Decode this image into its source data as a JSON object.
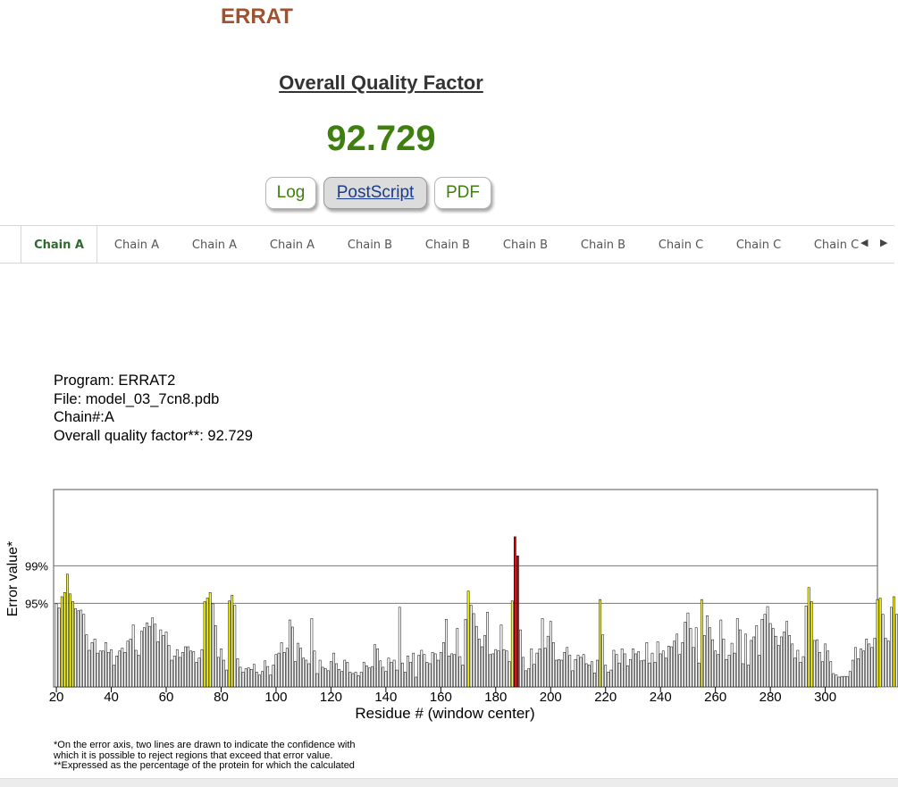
{
  "header": {
    "app_title": "ERRAT",
    "quality_heading": "Overall Quality Factor",
    "quality_value": "92.729"
  },
  "buttons": {
    "log": "Log",
    "postscript": "PostScript",
    "pdf": "PDF"
  },
  "tabs": [
    {
      "label": "Chain A",
      "active": true
    },
    {
      "label": "Chain A",
      "active": false
    },
    {
      "label": "Chain A",
      "active": false
    },
    {
      "label": "Chain A",
      "active": false
    },
    {
      "label": "Chain B",
      "active": false
    },
    {
      "label": "Chain B",
      "active": false
    },
    {
      "label": "Chain B",
      "active": false
    },
    {
      "label": "Chain B",
      "active": false
    },
    {
      "label": "Chain C",
      "active": false
    },
    {
      "label": "Chain C",
      "active": false
    },
    {
      "label": "Chain C",
      "active": false
    }
  ],
  "tab_scroll": {
    "left_icon": "◀",
    "right_icon": "▶"
  },
  "plot_info": {
    "program": "Program: ERRAT2",
    "file": "File: model_03_7cn8.pdb",
    "chain": "Chain#:A",
    "overall": "Overall quality factor**: 92.729"
  },
  "chart_data": {
    "type": "bar",
    "xlabel": "Residue # (window center)",
    "ylabel": "Error value*",
    "x_ticks": [
      20,
      40,
      60,
      80,
      100,
      120,
      140,
      160,
      180,
      200,
      220,
      240,
      260,
      280,
      300
    ],
    "thresholds": [
      {
        "label": "95%",
        "value": 11.86
      },
      {
        "label": "99%",
        "value": 17.19
      }
    ],
    "xlim": [
      19,
      319
    ],
    "ylim": [
      0,
      28
    ],
    "colors": {
      "normal": "#ffffff",
      "warn_95": "#ffff00",
      "error_99": "#cc0000",
      "outline": "#000000"
    },
    "x_start": 20,
    "values": [
      11.8,
      11.2,
      12.8,
      13.4,
      16,
      13.2,
      12.1,
      11.1,
      10.8,
      10.9,
      10.3,
      7.4,
      5.2,
      6.3,
      6.8,
      4.8,
      5.1,
      5.1,
      6.3,
      4.9,
      5.3,
      3.1,
      4.4,
      5.1,
      5.5,
      4.9,
      6.5,
      6.8,
      8.8,
      5.2,
      4.5,
      7.9,
      8.4,
      9.1,
      8.6,
      9.8,
      8.9,
      6.4,
      8.1,
      7.3,
      7.8,
      5.9,
      3.8,
      4.4,
      5.3,
      4.2,
      4.9,
      5.7,
      5.7,
      5.1,
      5,
      3.5,
      4.1,
      5.3,
      12.1,
      12.6,
      13.4,
      11.8,
      8.7,
      4.2,
      5.4,
      3.8,
      2.4,
      12.2,
      13,
      11.6,
      4,
      2.8,
      2.1,
      2.6,
      2.7,
      2.5,
      3.2,
      2.1,
      1.7,
      2.2,
      3.7,
      2.9,
      1.7,
      3.1,
      4.6,
      4.8,
      6.3,
      4.9,
      5.5,
      9.5,
      8.5,
      3.6,
      6.2,
      5.5,
      4.1,
      3.8,
      3.3,
      9.7,
      5.1,
      1.9,
      3.8,
      2.8,
      2.6,
      2.3,
      3.6,
      4.8,
      3.3,
      2.5,
      2.2,
      3.8,
      3.5,
      2.1,
      1.9,
      2.1,
      1.6,
      2.1,
      3.5,
      3,
      2.7,
      2.9,
      6,
      5.4,
      3.7,
      2.8,
      2.2,
      4.1,
      3.5,
      3.8,
      2.4,
      11.3,
      3.4,
      2.1,
      4.4,
      3.5,
      4.8,
      1.4,
      4.5,
      5.2,
      4.6,
      3.5,
      3.3,
      4.9,
      4.7,
      3.8,
      4.9,
      6.3,
      9.6,
      4.4,
      4.7,
      4.6,
      8.3,
      4.3,
      3.1,
      9.6,
      13.6,
      11.6,
      10.4,
      8.6,
      6.8,
      5.7,
      7.3,
      10.6,
      4.6,
      4.7,
      5.3,
      5.1,
      8.8,
      5.3,
      5.1,
      3.6,
      12.2,
      21.3,
      18.6,
      8.1,
      4.2,
      2.3,
      2.6,
      5.4,
      3.2,
      4.8,
      5.4,
      9.7,
      5.5,
      7.2,
      9.3,
      6.3,
      3.8,
      3.9,
      3.8,
      4.9,
      5.6,
      4.5,
      2.3,
      3.9,
      4.5,
      4.2,
      4.6,
      3.3,
      3.1,
      3.6,
      2,
      3.8,
      12.4,
      7.4,
      3.1,
      2.1,
      2.4,
      5.2,
      4.6,
      3.4,
      5.4,
      4.7,
      3,
      3.9,
      5.4,
      4.7,
      5,
      3.7,
      3.8,
      6.3,
      3.4,
      4.8,
      3.5,
      6.4,
      4.7,
      5.1,
      4.1,
      5.8,
      5.7,
      6.5,
      7.5,
      4.6,
      6.3,
      9.2,
      10.5,
      8.3,
      5.6,
      8.4,
      3.4,
      12.4,
      7.3,
      10.1,
      8.4,
      6.7,
      5.1,
      4.6,
      9.5,
      6.8,
      3.9,
      4.5,
      6.2,
      4.8,
      9.7,
      8.1,
      3.3,
      7.5,
      3.1,
      6.6,
      7.1,
      8.7,
      4.5,
      9.6,
      10.3,
      11.4,
      9,
      8.3,
      7.2,
      5.9,
      7.1,
      7.8,
      9.3,
      7.3,
      6.1,
      4.1,
      5.2,
      3.5,
      4.3,
      11.5,
      14.1,
      12.1,
      6.6,
      6.7,
      4.9,
      3.6,
      6.1,
      5.1,
      3.6,
      1.9,
      1.7,
      1.4,
      1.5,
      1.5,
      1.5,
      2.2,
      3.8,
      5.6,
      4,
      5.4,
      5.1,
      6.8,
      6.1,
      5.6,
      6.9,
      12.4,
      12.6,
      10.3,
      6.9,
      6.5,
      11.3,
      12.8,
      10.3,
      11.8,
      15.9,
      19.2
    ]
  },
  "footnotes": [
    "*On the error axis, two lines are drawn to indicate the confidence with",
    "which it is possible to reject regions that exceed that error value.",
    "**Expressed as the percentage of the protein for which the calculated"
  ]
}
